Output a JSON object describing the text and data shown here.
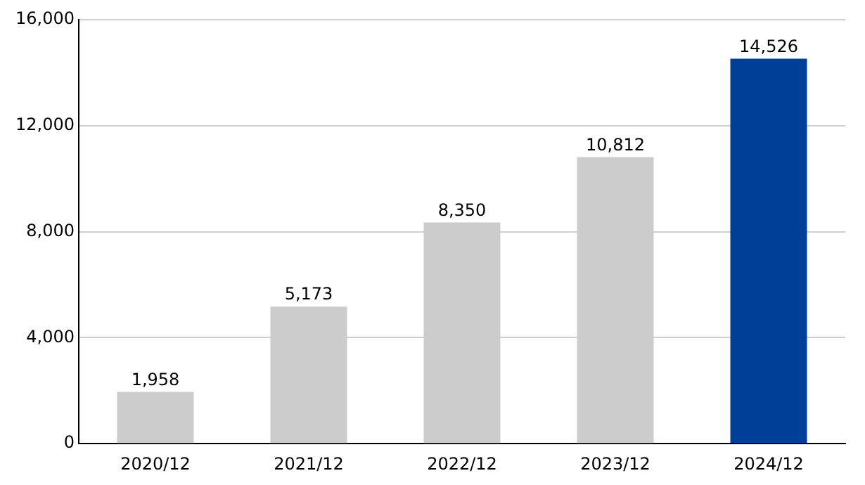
{
  "chart_data": {
    "type": "bar",
    "categories": [
      "2020/12",
      "2021/12",
      "2022/12",
      "2023/12",
      "2024/12"
    ],
    "values": [
      1958,
      5173,
      8350,
      10812,
      14526
    ],
    "colors": [
      "#cccccc",
      "#cccccc",
      "#cccccc",
      "#cccccc",
      "#003f98"
    ],
    "ylim": [
      0,
      16000
    ],
    "yticks": [
      {
        "value": 0,
        "label": "0"
      },
      {
        "value": 4000,
        "label": "4,000"
      },
      {
        "value": 8000,
        "label": "8,000"
      },
      {
        "value": 12000,
        "label": "12,000"
      },
      {
        "value": 16000,
        "label": "16,000"
      }
    ],
    "value_labels": [
      "1,958",
      "5,173",
      "8,350",
      "10,812",
      "14,526"
    ],
    "grid": "y",
    "legend": false
  }
}
